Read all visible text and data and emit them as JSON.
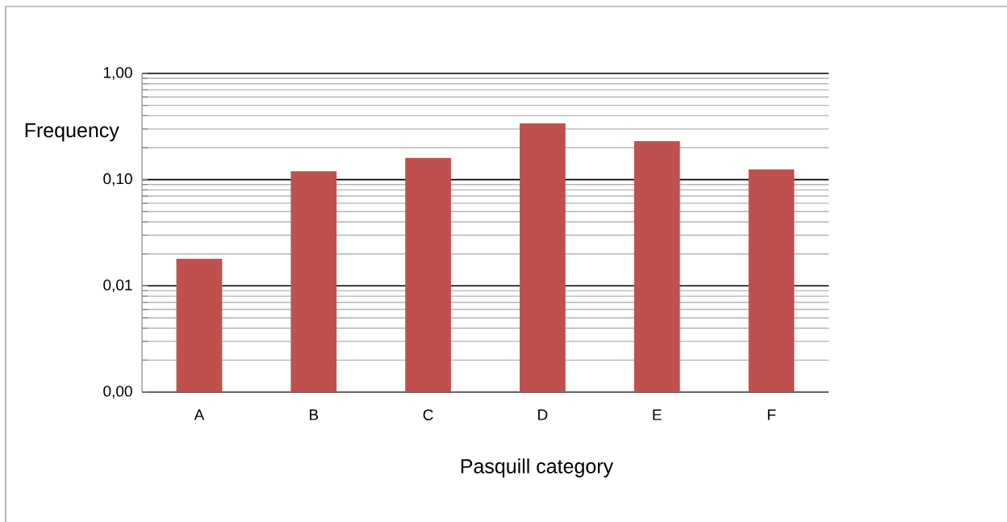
{
  "chart_data": {
    "type": "bar",
    "xlabel": "Pasquill category",
    "ylabel": "Frequency",
    "categories": [
      "A",
      "B",
      "C",
      "D",
      "E",
      "F"
    ],
    "values": [
      0.018,
      0.12,
      0.16,
      0.34,
      0.23,
      0.125
    ],
    "color": "#c0504d",
    "log": true,
    "ylim": [
      0.001,
      1
    ],
    "yticks": [
      {
        "value": 0.001,
        "label": "0,00"
      },
      {
        "value": 0.01,
        "label": "0,01"
      },
      {
        "value": 0.1,
        "label": "0,10"
      },
      {
        "value": 1,
        "label": "1,00"
      }
    ],
    "grid": "y"
  }
}
